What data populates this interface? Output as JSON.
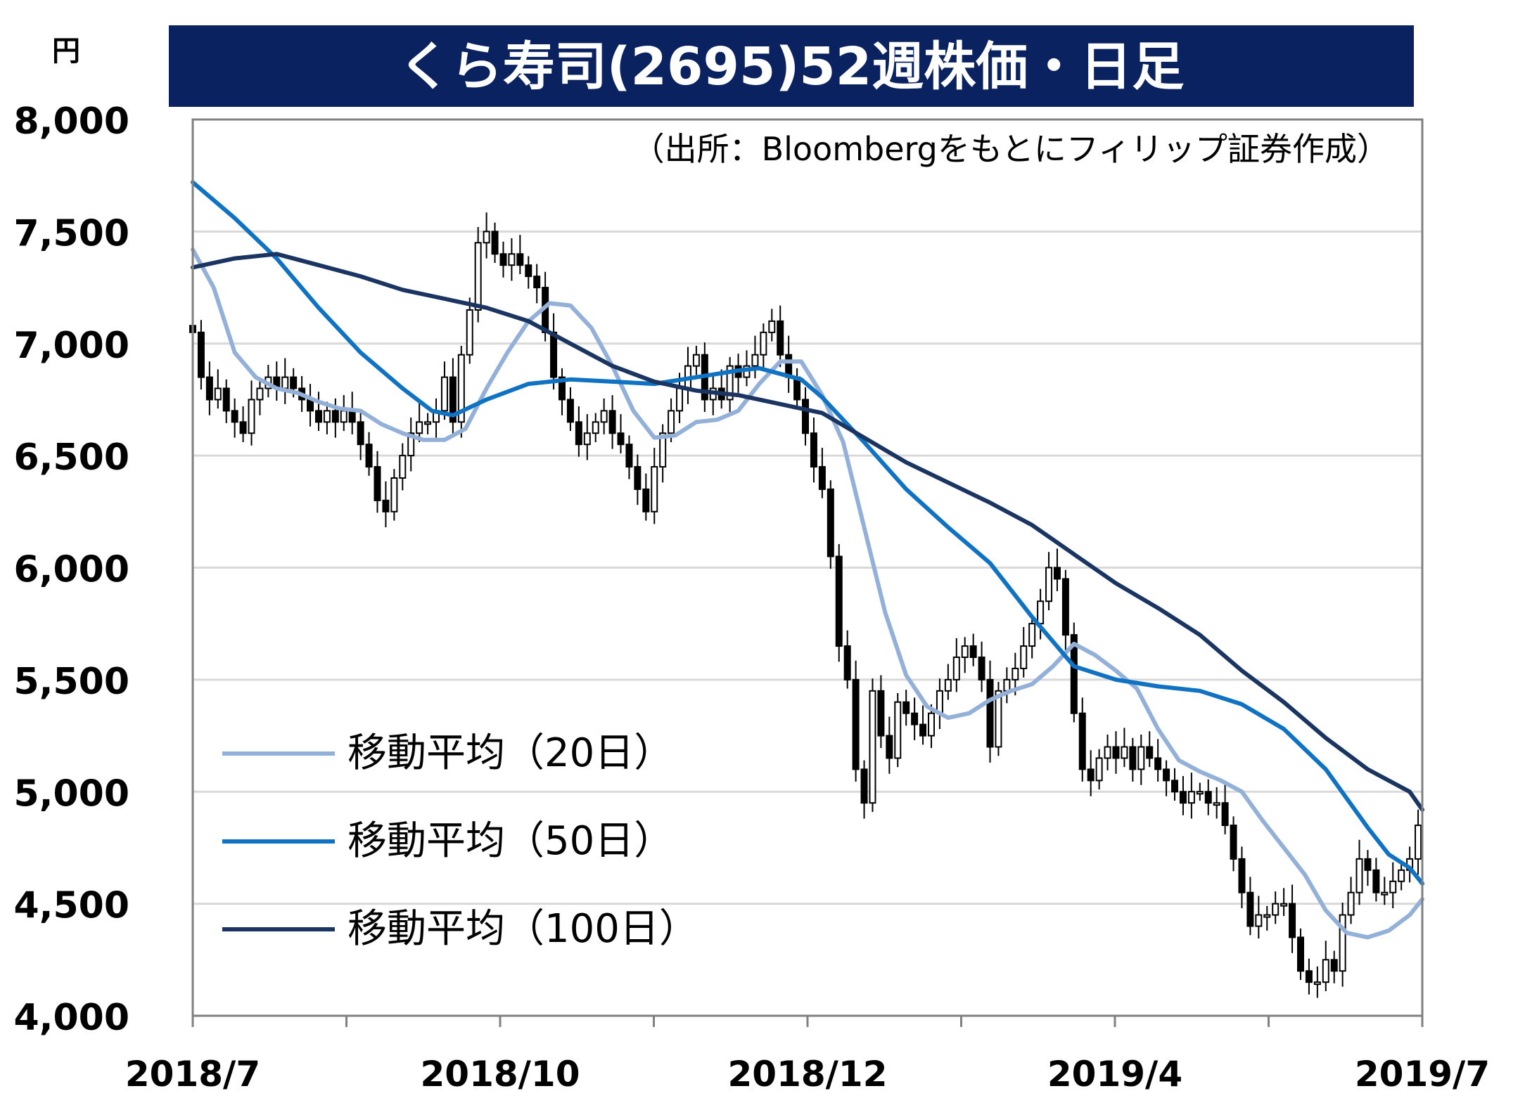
{
  "chart_data": {
    "type": "line",
    "title": "くら寿司(2695)52週株価・日足",
    "source_note": "（出所：Bloombergをもとにフィリップ証券作成）",
    "ylabel": "円",
    "ylim": [
      4000,
      8000
    ],
    "yticks": [
      "4,000",
      "4,500",
      "5,000",
      "5,500",
      "6,000",
      "6,500",
      "7,000",
      "7,500",
      "8,000"
    ],
    "xtick_labels": [
      "2018/7",
      "2018/10",
      "2018/12",
      "2019/4",
      "2019/7"
    ],
    "grid": true,
    "legend_position": "lower-left",
    "colors": {
      "title_bg": "#0B2260",
      "candle": "#000000",
      "ma20": "#93B0D8",
      "ma50": "#0F72C2",
      "ma100": "#1B3563",
      "grid": "#D9D9D9",
      "frame": "#808080"
    },
    "price_close_series": [
      [
        0,
        7050
      ],
      [
        2,
        6850
      ],
      [
        4,
        6750
      ],
      [
        6,
        6800
      ],
      [
        8,
        6700
      ],
      [
        10,
        6650
      ],
      [
        12,
        6600
      ],
      [
        14,
        6750
      ],
      [
        16,
        6800
      ],
      [
        18,
        6850
      ],
      [
        20,
        6800
      ],
      [
        22,
        6850
      ],
      [
        24,
        6800
      ],
      [
        26,
        6750
      ],
      [
        28,
        6700
      ],
      [
        30,
        6650
      ],
      [
        32,
        6700
      ],
      [
        34,
        6650
      ],
      [
        36,
        6700
      ],
      [
        38,
        6650
      ],
      [
        40,
        6550
      ],
      [
        42,
        6450
      ],
      [
        44,
        6300
      ],
      [
        46,
        6250
      ],
      [
        48,
        6400
      ],
      [
        50,
        6500
      ],
      [
        52,
        6600
      ],
      [
        54,
        6650
      ],
      [
        56,
        6650
      ],
      [
        58,
        6700
      ],
      [
        60,
        6850
      ],
      [
        62,
        6650
      ],
      [
        64,
        6950
      ],
      [
        66,
        7150
      ],
      [
        68,
        7450
      ],
      [
        70,
        7500
      ],
      [
        72,
        7400
      ],
      [
        74,
        7350
      ],
      [
        76,
        7400
      ],
      [
        78,
        7350
      ],
      [
        80,
        7300
      ],
      [
        82,
        7250
      ],
      [
        84,
        7050
      ],
      [
        86,
        6850
      ],
      [
        88,
        6750
      ],
      [
        90,
        6650
      ],
      [
        92,
        6550
      ],
      [
        94,
        6600
      ],
      [
        96,
        6650
      ],
      [
        98,
        6700
      ],
      [
        100,
        6600
      ],
      [
        102,
        6550
      ],
      [
        104,
        6450
      ],
      [
        106,
        6350
      ],
      [
        108,
        6250
      ],
      [
        110,
        6450
      ],
      [
        112,
        6600
      ],
      [
        114,
        6700
      ],
      [
        116,
        6800
      ],
      [
        118,
        6900
      ],
      [
        120,
        6950
      ],
      [
        122,
        6750
      ],
      [
        124,
        6800
      ],
      [
        126,
        6750
      ],
      [
        128,
        6900
      ],
      [
        130,
        6850
      ],
      [
        132,
        6900
      ],
      [
        134,
        6950
      ],
      [
        136,
        7050
      ],
      [
        138,
        7100
      ],
      [
        140,
        6950
      ],
      [
        142,
        6850
      ],
      [
        144,
        6750
      ],
      [
        146,
        6600
      ],
      [
        148,
        6450
      ],
      [
        150,
        6350
      ],
      [
        152,
        6050
      ],
      [
        154,
        5650
      ],
      [
        156,
        5500
      ],
      [
        158,
        5100
      ],
      [
        160,
        4950
      ],
      [
        162,
        5450
      ],
      [
        164,
        5250
      ],
      [
        166,
        5150
      ],
      [
        168,
        5400
      ],
      [
        170,
        5350
      ],
      [
        172,
        5300
      ],
      [
        174,
        5250
      ],
      [
        176,
        5350
      ],
      [
        178,
        5450
      ],
      [
        180,
        5500
      ],
      [
        182,
        5600
      ],
      [
        184,
        5650
      ],
      [
        186,
        5600
      ],
      [
        188,
        5500
      ],
      [
        190,
        5200
      ],
      [
        192,
        5450
      ],
      [
        194,
        5500
      ],
      [
        196,
        5550
      ],
      [
        198,
        5650
      ],
      [
        200,
        5750
      ],
      [
        202,
        5850
      ],
      [
        204,
        6000
      ],
      [
        206,
        5950
      ],
      [
        208,
        5700
      ],
      [
        210,
        5350
      ],
      [
        212,
        5100
      ],
      [
        214,
        5050
      ],
      [
        216,
        5150
      ],
      [
        218,
        5200
      ],
      [
        220,
        5150
      ],
      [
        222,
        5200
      ],
      [
        224,
        5100
      ],
      [
        226,
        5200
      ],
      [
        228,
        5150
      ],
      [
        230,
        5100
      ],
      [
        232,
        5050
      ],
      [
        234,
        5000
      ],
      [
        236,
        4950
      ],
      [
        238,
        5000
      ],
      [
        240,
        5000
      ],
      [
        242,
        4950
      ],
      [
        244,
        4950
      ],
      [
        246,
        4850
      ],
      [
        248,
        4700
      ],
      [
        250,
        4550
      ],
      [
        252,
        4400
      ],
      [
        254,
        4450
      ],
      [
        256,
        4450
      ],
      [
        258,
        4500
      ],
      [
        260,
        4500
      ],
      [
        262,
        4350
      ],
      [
        264,
        4200
      ],
      [
        266,
        4150
      ],
      [
        268,
        4150
      ],
      [
        270,
        4250
      ],
      [
        272,
        4200
      ],
      [
        274,
        4450
      ],
      [
        276,
        4550
      ],
      [
        278,
        4700
      ],
      [
        280,
        4650
      ],
      [
        282,
        4550
      ],
      [
        284,
        4550
      ],
      [
        286,
        4600
      ],
      [
        288,
        4650
      ],
      [
        290,
        4700
      ],
      [
        292,
        4850
      ]
    ],
    "series": [
      {
        "name": "移動平均（20日）",
        "color": "#93B0D8",
        "points": [
          [
            0,
            7420
          ],
          [
            5,
            7250
          ],
          [
            10,
            6960
          ],
          [
            15,
            6850
          ],
          [
            20,
            6800
          ],
          [
            25,
            6780
          ],
          [
            30,
            6740
          ],
          [
            35,
            6710
          ],
          [
            40,
            6700
          ],
          [
            45,
            6640
          ],
          [
            50,
            6600
          ],
          [
            55,
            6570
          ],
          [
            60,
            6570
          ],
          [
            65,
            6620
          ],
          [
            70,
            6800
          ],
          [
            75,
            6960
          ],
          [
            80,
            7100
          ],
          [
            85,
            7180
          ],
          [
            90,
            7170
          ],
          [
            95,
            7070
          ],
          [
            100,
            6900
          ],
          [
            105,
            6700
          ],
          [
            110,
            6580
          ],
          [
            115,
            6590
          ],
          [
            120,
            6650
          ],
          [
            125,
            6660
          ],
          [
            130,
            6700
          ],
          [
            135,
            6820
          ],
          [
            140,
            6920
          ],
          [
            145,
            6920
          ],
          [
            150,
            6770
          ],
          [
            155,
            6560
          ],
          [
            160,
            6180
          ],
          [
            165,
            5800
          ],
          [
            170,
            5520
          ],
          [
            175,
            5380
          ],
          [
            180,
            5330
          ],
          [
            185,
            5350
          ],
          [
            190,
            5410
          ],
          [
            195,
            5450
          ],
          [
            200,
            5480
          ],
          [
            205,
            5560
          ],
          [
            210,
            5660
          ],
          [
            215,
            5610
          ],
          [
            220,
            5540
          ],
          [
            225,
            5460
          ],
          [
            230,
            5280
          ],
          [
            235,
            5140
          ],
          [
            240,
            5090
          ],
          [
            245,
            5050
          ],
          [
            250,
            5000
          ],
          [
            255,
            4870
          ],
          [
            260,
            4750
          ],
          [
            265,
            4630
          ],
          [
            270,
            4470
          ],
          [
            275,
            4370
          ],
          [
            280,
            4350
          ],
          [
            285,
            4380
          ],
          [
            290,
            4450
          ],
          [
            293,
            4520
          ]
        ]
      },
      {
        "name": "移動平均（50日）",
        "color": "#0F72C2",
        "points": [
          [
            0,
            7720
          ],
          [
            10,
            7560
          ],
          [
            20,
            7380
          ],
          [
            30,
            7160
          ],
          [
            40,
            6960
          ],
          [
            50,
            6800
          ],
          [
            57,
            6700
          ],
          [
            62,
            6680
          ],
          [
            70,
            6750
          ],
          [
            80,
            6820
          ],
          [
            90,
            6840
          ],
          [
            100,
            6830
          ],
          [
            110,
            6820
          ],
          [
            120,
            6850
          ],
          [
            130,
            6880
          ],
          [
            135,
            6890
          ],
          [
            145,
            6840
          ],
          [
            150,
            6760
          ],
          [
            160,
            6560
          ],
          [
            170,
            6350
          ],
          [
            180,
            6180
          ],
          [
            190,
            6020
          ],
          [
            200,
            5780
          ],
          [
            210,
            5560
          ],
          [
            220,
            5500
          ],
          [
            230,
            5470
          ],
          [
            240,
            5450
          ],
          [
            250,
            5390
          ],
          [
            260,
            5280
          ],
          [
            270,
            5100
          ],
          [
            280,
            4840
          ],
          [
            285,
            4720
          ],
          [
            290,
            4660
          ],
          [
            293,
            4590
          ]
        ]
      },
      {
        "name": "移動平均（100日）",
        "color": "#1B3563",
        "points": [
          [
            0,
            7340
          ],
          [
            10,
            7380
          ],
          [
            20,
            7400
          ],
          [
            30,
            7350
          ],
          [
            40,
            7300
          ],
          [
            50,
            7240
          ],
          [
            60,
            7200
          ],
          [
            70,
            7160
          ],
          [
            80,
            7100
          ],
          [
            90,
            7000
          ],
          [
            100,
            6900
          ],
          [
            110,
            6830
          ],
          [
            120,
            6790
          ],
          [
            130,
            6770
          ],
          [
            140,
            6730
          ],
          [
            150,
            6690
          ],
          [
            160,
            6580
          ],
          [
            170,
            6470
          ],
          [
            180,
            6380
          ],
          [
            190,
            6290
          ],
          [
            200,
            6190
          ],
          [
            210,
            6060
          ],
          [
            220,
            5930
          ],
          [
            230,
            5820
          ],
          [
            240,
            5700
          ],
          [
            250,
            5540
          ],
          [
            260,
            5400
          ],
          [
            270,
            5240
          ],
          [
            280,
            5100
          ],
          [
            290,
            5000
          ],
          [
            293,
            4920
          ]
        ]
      }
    ]
  }
}
